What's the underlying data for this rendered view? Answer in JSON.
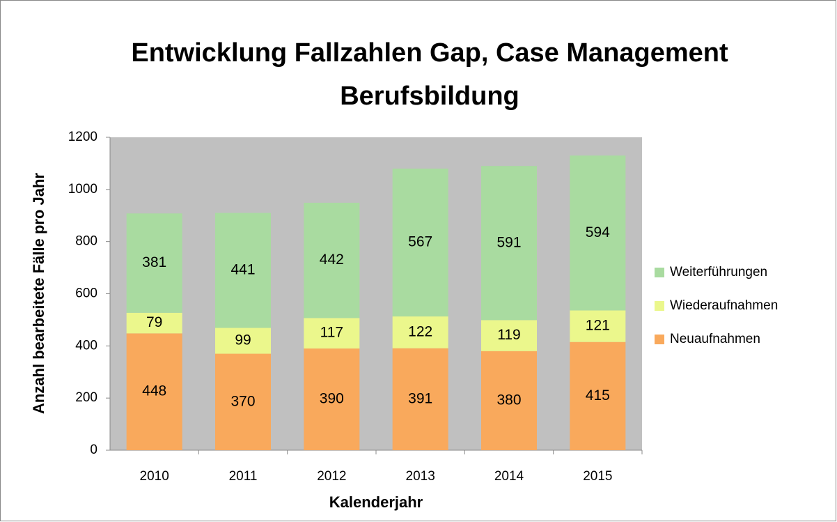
{
  "chart_data": {
    "type": "stacked_bar",
    "title": [
      "Entwicklung Fallzahlen Gap, Case Management",
      "Berufsbildung"
    ],
    "x_label": "Kalenderjahr",
    "y_label": "Anzahl bearbeitete Fälle pro Jahr",
    "categories": [
      "2010",
      "2011",
      "2012",
      "2013",
      "2014",
      "2015"
    ],
    "series": [
      {
        "name": "Neuaufnahmen",
        "color": "#f9a95c",
        "values": [
          448,
          370,
          390,
          391,
          380,
          415
        ]
      },
      {
        "name": "Wiederaufnahmen",
        "color": "#ebf78c",
        "values": [
          79,
          99,
          117,
          122,
          119,
          121
        ]
      },
      {
        "name": "Weiterführungen",
        "color": "#a9dba0",
        "values": [
          381,
          441,
          442,
          567,
          591,
          594
        ]
      }
    ],
    "ylim": [
      0,
      1200
    ],
    "yticks": [
      0,
      200,
      400,
      600,
      800,
      1000,
      1200
    ],
    "plot_background": "#c0c0c0",
    "legend": "right"
  }
}
